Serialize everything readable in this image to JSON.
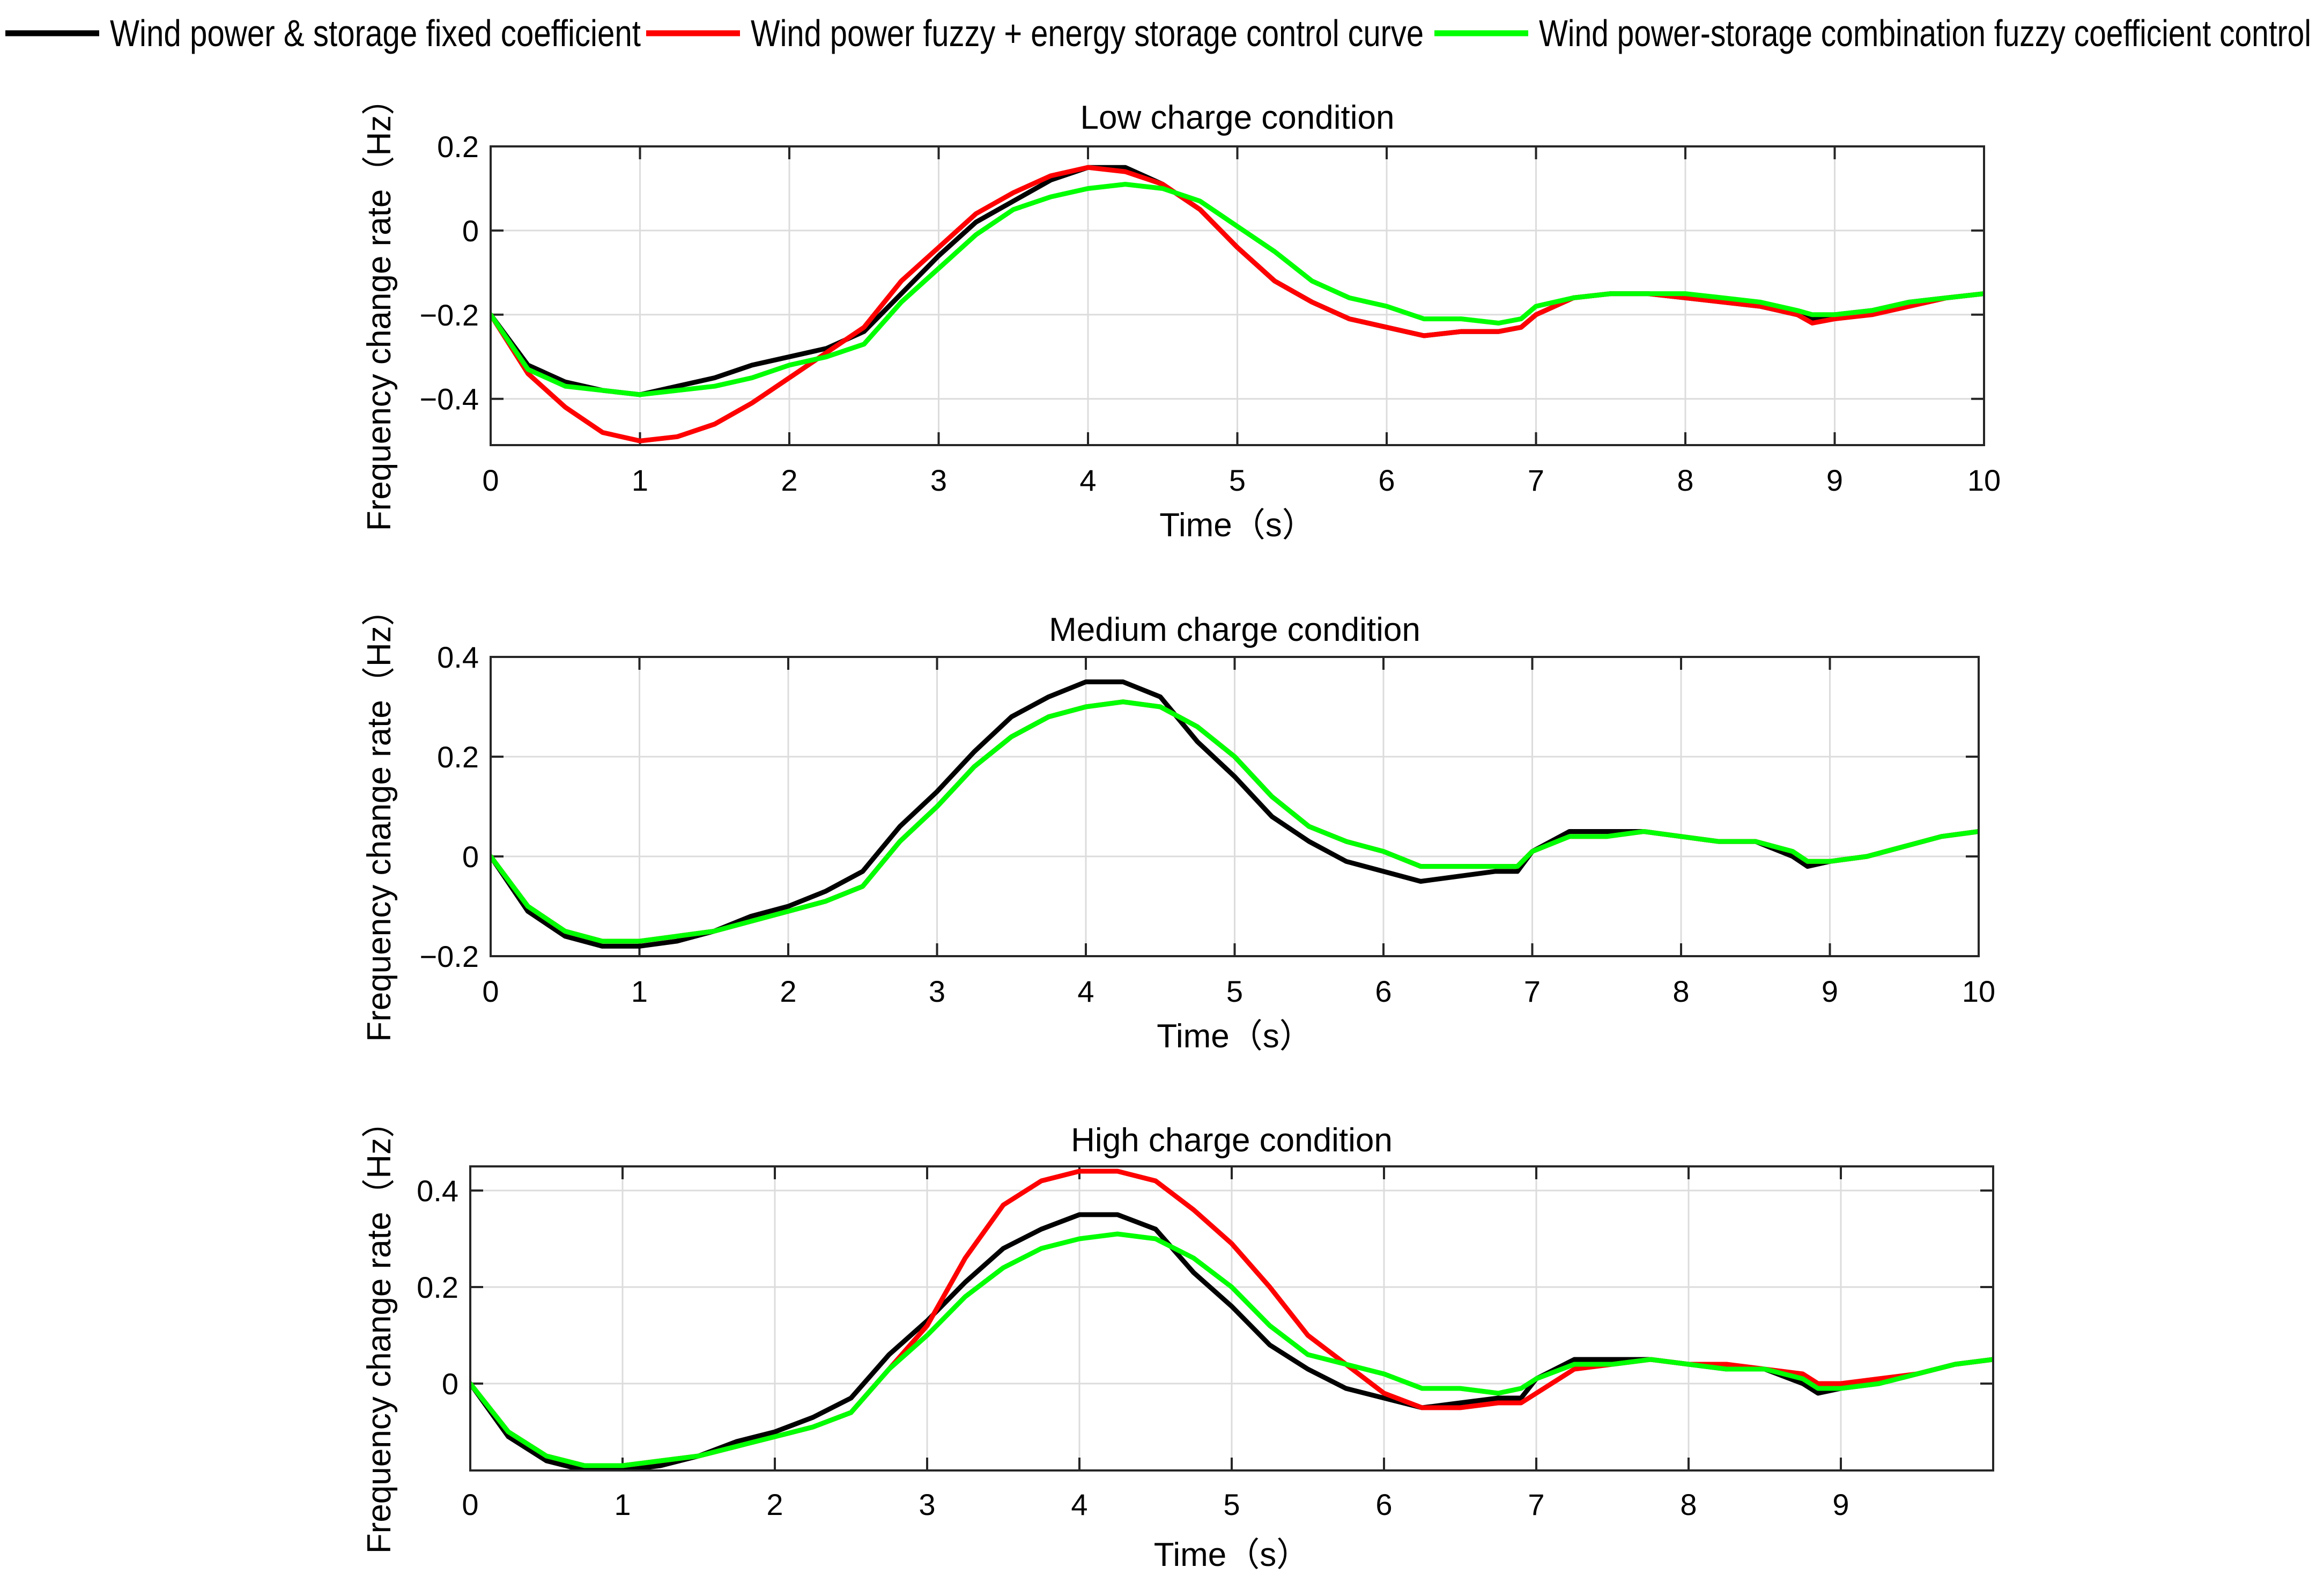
{
  "colors": {
    "fixed": "#000000",
    "fuzzy_storage": "#ff0000",
    "combination": "#00ff00"
  },
  "legend": [
    {
      "label": "Wind power & storage fixed coefficient",
      "color": "#000000"
    },
    {
      "label": "Wind power fuzzy + energy storage control curve",
      "color": "#ff0000"
    },
    {
      "label": "Wind power-storage combination fuzzy coefficient control",
      "color": "#00ff00"
    }
  ],
  "chart_data": [
    {
      "type": "line",
      "title": "Low charge condition",
      "xlabel": "Time（s）",
      "ylabel": "Frequency change rate（Hz）",
      "xlim": [
        0,
        10
      ],
      "ylim": [
        -0.51,
        0.2
      ],
      "xticks": [
        0,
        1,
        2,
        3,
        4,
        5,
        6,
        7,
        8,
        9,
        10
      ],
      "xtick_labels": [
        "0",
        "1",
        "2",
        "3",
        "4",
        "5",
        "6",
        "7",
        "8",
        "9",
        "10"
      ],
      "yticks": [
        -0.4,
        -0.2,
        0,
        0.2
      ],
      "ytick_labels": [
        "−0.4",
        "−0.2",
        "0",
        "0.2"
      ],
      "x": [
        0,
        0.25,
        0.5,
        0.75,
        1.0,
        1.25,
        1.5,
        1.75,
        2.0,
        2.25,
        2.5,
        2.75,
        3.0,
        3.25,
        3.5,
        3.75,
        4.0,
        4.25,
        4.5,
        4.75,
        5.0,
        5.25,
        5.5,
        5.75,
        6.0,
        6.25,
        6.5,
        6.75,
        6.9,
        7.0,
        7.25,
        7.5,
        7.75,
        8.0,
        8.25,
        8.5,
        8.75,
        8.85,
        9.0,
        9.25,
        9.5,
        9.75,
        10.0
      ],
      "series": [
        {
          "name": "Wind power & storage fixed coefficient",
          "color": "#000000",
          "values": [
            -0.2,
            -0.32,
            -0.36,
            -0.38,
            -0.39,
            -0.37,
            -0.35,
            -0.32,
            -0.3,
            -0.28,
            -0.24,
            -0.15,
            -0.06,
            0.02,
            0.07,
            0.12,
            0.15,
            0.15,
            0.11,
            0.05,
            -0.04,
            -0.12,
            -0.17,
            -0.21,
            -0.23,
            -0.25,
            -0.24,
            -0.24,
            -0.23,
            -0.2,
            -0.16,
            -0.15,
            -0.15,
            -0.16,
            -0.17,
            -0.18,
            -0.2,
            -0.21,
            -0.2,
            -0.19,
            -0.17,
            -0.16,
            -0.15
          ]
        },
        {
          "name": "Wind power fuzzy + energy storage control curve",
          "color": "#ff0000",
          "values": [
            -0.2,
            -0.34,
            -0.42,
            -0.48,
            -0.5,
            -0.49,
            -0.46,
            -0.41,
            -0.35,
            -0.29,
            -0.23,
            -0.12,
            -0.04,
            0.04,
            0.09,
            0.13,
            0.15,
            0.14,
            0.11,
            0.05,
            -0.04,
            -0.12,
            -0.17,
            -0.21,
            -0.23,
            -0.25,
            -0.24,
            -0.24,
            -0.23,
            -0.2,
            -0.16,
            -0.15,
            -0.15,
            -0.16,
            -0.17,
            -0.18,
            -0.2,
            -0.22,
            -0.21,
            -0.2,
            -0.18,
            -0.16,
            -0.15
          ]
        },
        {
          "name": "Wind power-storage combination fuzzy coefficient control",
          "color": "#00ff00",
          "values": [
            -0.2,
            -0.33,
            -0.37,
            -0.38,
            -0.39,
            -0.38,
            -0.37,
            -0.35,
            -0.32,
            -0.3,
            -0.27,
            -0.17,
            -0.09,
            -0.01,
            0.05,
            0.08,
            0.1,
            0.11,
            0.1,
            0.07,
            0.01,
            -0.05,
            -0.12,
            -0.16,
            -0.18,
            -0.21,
            -0.21,
            -0.22,
            -0.21,
            -0.18,
            -0.16,
            -0.15,
            -0.15,
            -0.15,
            -0.16,
            -0.17,
            -0.19,
            -0.2,
            -0.2,
            -0.19,
            -0.17,
            -0.16,
            -0.15
          ]
        }
      ]
    },
    {
      "type": "line",
      "title": "Medium charge condition",
      "xlabel": "Time（s）",
      "ylabel": "Frequency change rate（Hz）",
      "xlim": [
        0,
        10
      ],
      "ylim": [
        -0.2,
        0.4
      ],
      "xticks": [
        0,
        1,
        2,
        3,
        4,
        5,
        6,
        7,
        8,
        9,
        10
      ],
      "xtick_labels": [
        "0",
        "1",
        "2",
        "3",
        "4",
        "5",
        "6",
        "7",
        "8",
        "9",
        "10"
      ],
      "yticks": [
        -0.2,
        0,
        0.2,
        0.4
      ],
      "ytick_labels": [
        "−0.2",
        "0",
        "0.2",
        "0.4"
      ],
      "x": [
        0,
        0.25,
        0.5,
        0.75,
        1.0,
        1.25,
        1.5,
        1.75,
        2.0,
        2.25,
        2.5,
        2.75,
        3.0,
        3.25,
        3.5,
        3.75,
        4.0,
        4.25,
        4.5,
        4.75,
        5.0,
        5.25,
        5.5,
        5.75,
        6.0,
        6.25,
        6.5,
        6.75,
        6.9,
        7.0,
        7.25,
        7.5,
        7.75,
        8.0,
        8.25,
        8.5,
        8.75,
        8.85,
        9.0,
        9.25,
        9.5,
        9.75,
        10.0
      ],
      "series": [
        {
          "name": "Wind power & storage fixed coefficient",
          "color": "#000000",
          "values": [
            0.0,
            -0.11,
            -0.16,
            -0.18,
            -0.18,
            -0.17,
            -0.15,
            -0.12,
            -0.1,
            -0.07,
            -0.03,
            0.06,
            0.13,
            0.21,
            0.28,
            0.32,
            0.35,
            0.35,
            0.32,
            0.23,
            0.16,
            0.08,
            0.03,
            -0.01,
            -0.03,
            -0.05,
            -0.04,
            -0.03,
            -0.03,
            0.01,
            0.05,
            0.05,
            0.05,
            0.04,
            0.03,
            0.03,
            0.0,
            -0.02,
            -0.01,
            0.0,
            0.02,
            0.04,
            0.05
          ]
        },
        {
          "name": "Wind power fuzzy + energy storage control curve",
          "color": "#ff0000",
          "values": [
            0.0,
            -0.1,
            -0.15,
            -0.17,
            -0.17,
            -0.16,
            -0.15,
            -0.13,
            -0.11,
            -0.09,
            -0.06,
            0.03,
            0.1,
            0.18,
            0.24,
            0.28,
            0.3,
            0.31,
            0.3,
            0.26,
            0.2,
            0.12,
            0.06,
            0.03,
            0.01,
            -0.02,
            -0.02,
            -0.02,
            -0.02,
            0.01,
            0.04,
            0.04,
            0.05,
            0.04,
            0.03,
            0.03,
            0.01,
            -0.01,
            -0.01,
            0.0,
            0.02,
            0.04,
            0.05
          ]
        },
        {
          "name": "Wind power-storage combination fuzzy coefficient control",
          "color": "#00ff00",
          "values": [
            0.0,
            -0.1,
            -0.15,
            -0.17,
            -0.17,
            -0.16,
            -0.15,
            -0.13,
            -0.11,
            -0.09,
            -0.06,
            0.03,
            0.1,
            0.18,
            0.24,
            0.28,
            0.3,
            0.31,
            0.3,
            0.26,
            0.2,
            0.12,
            0.06,
            0.03,
            0.01,
            -0.02,
            -0.02,
            -0.02,
            -0.02,
            0.01,
            0.04,
            0.04,
            0.05,
            0.04,
            0.03,
            0.03,
            0.01,
            -0.01,
            -0.01,
            0.0,
            0.02,
            0.04,
            0.05
          ]
        }
      ]
    },
    {
      "type": "line",
      "title": "High charge condition",
      "xlabel": "Time（s）",
      "ylabel": "Frequency change rate（Hz）",
      "xlim": [
        0,
        10
      ],
      "ylim": [
        -0.18,
        0.45
      ],
      "xticks": [
        0,
        1,
        2,
        3,
        4,
        5,
        6,
        7,
        8,
        9
      ],
      "xtick_labels": [
        "0",
        "1",
        "2",
        "3",
        "4",
        "5",
        "6",
        "7",
        "8",
        "9"
      ],
      "yticks": [
        0,
        0.2,
        0.4
      ],
      "ytick_labels": [
        "0",
        "0.2",
        "0.4"
      ],
      "x": [
        0,
        0.25,
        0.5,
        0.75,
        1.0,
        1.25,
        1.5,
        1.75,
        2.0,
        2.25,
        2.5,
        2.75,
        3.0,
        3.25,
        3.5,
        3.75,
        4.0,
        4.25,
        4.5,
        4.75,
        5.0,
        5.25,
        5.5,
        5.75,
        6.0,
        6.25,
        6.5,
        6.75,
        6.9,
        7.0,
        7.25,
        7.5,
        7.75,
        8.0,
        8.25,
        8.5,
        8.75,
        8.85,
        9.0,
        9.25,
        9.5,
        9.75,
        10.0
      ],
      "series": [
        {
          "name": "Wind power & storage fixed coefficient",
          "color": "#000000",
          "values": [
            0.0,
            -0.11,
            -0.16,
            -0.18,
            -0.18,
            -0.17,
            -0.15,
            -0.12,
            -0.1,
            -0.07,
            -0.03,
            0.06,
            0.13,
            0.21,
            0.28,
            0.32,
            0.35,
            0.35,
            0.32,
            0.23,
            0.16,
            0.08,
            0.03,
            -0.01,
            -0.03,
            -0.05,
            -0.04,
            -0.03,
            -0.03,
            0.01,
            0.05,
            0.05,
            0.05,
            0.04,
            0.03,
            0.03,
            0.0,
            -0.02,
            -0.01,
            0.0,
            0.02,
            0.04,
            0.05
          ]
        },
        {
          "name": "Wind power fuzzy + energy storage control curve",
          "color": "#ff0000",
          "values": [
            0.0,
            -0.1,
            -0.15,
            -0.17,
            -0.17,
            -0.16,
            -0.15,
            -0.13,
            -0.11,
            -0.09,
            -0.06,
            0.03,
            0.12,
            0.26,
            0.37,
            0.42,
            0.44,
            0.44,
            0.42,
            0.36,
            0.29,
            0.2,
            0.1,
            0.04,
            -0.02,
            -0.05,
            -0.05,
            -0.04,
            -0.04,
            -0.02,
            0.03,
            0.04,
            0.05,
            0.04,
            0.04,
            0.03,
            0.02,
            0.0,
            0.0,
            0.01,
            0.02,
            0.04,
            0.05
          ]
        },
        {
          "name": "Wind power-storage combination fuzzy coefficient control",
          "color": "#00ff00",
          "values": [
            0.0,
            -0.1,
            -0.15,
            -0.17,
            -0.17,
            -0.16,
            -0.15,
            -0.13,
            -0.11,
            -0.09,
            -0.06,
            0.03,
            0.1,
            0.18,
            0.24,
            0.28,
            0.3,
            0.31,
            0.3,
            0.26,
            0.2,
            0.12,
            0.06,
            0.04,
            0.02,
            -0.01,
            -0.01,
            -0.02,
            -0.01,
            0.01,
            0.04,
            0.04,
            0.05,
            0.04,
            0.03,
            0.03,
            0.01,
            -0.01,
            -0.01,
            0.0,
            0.02,
            0.04,
            0.05
          ]
        }
      ]
    }
  ]
}
